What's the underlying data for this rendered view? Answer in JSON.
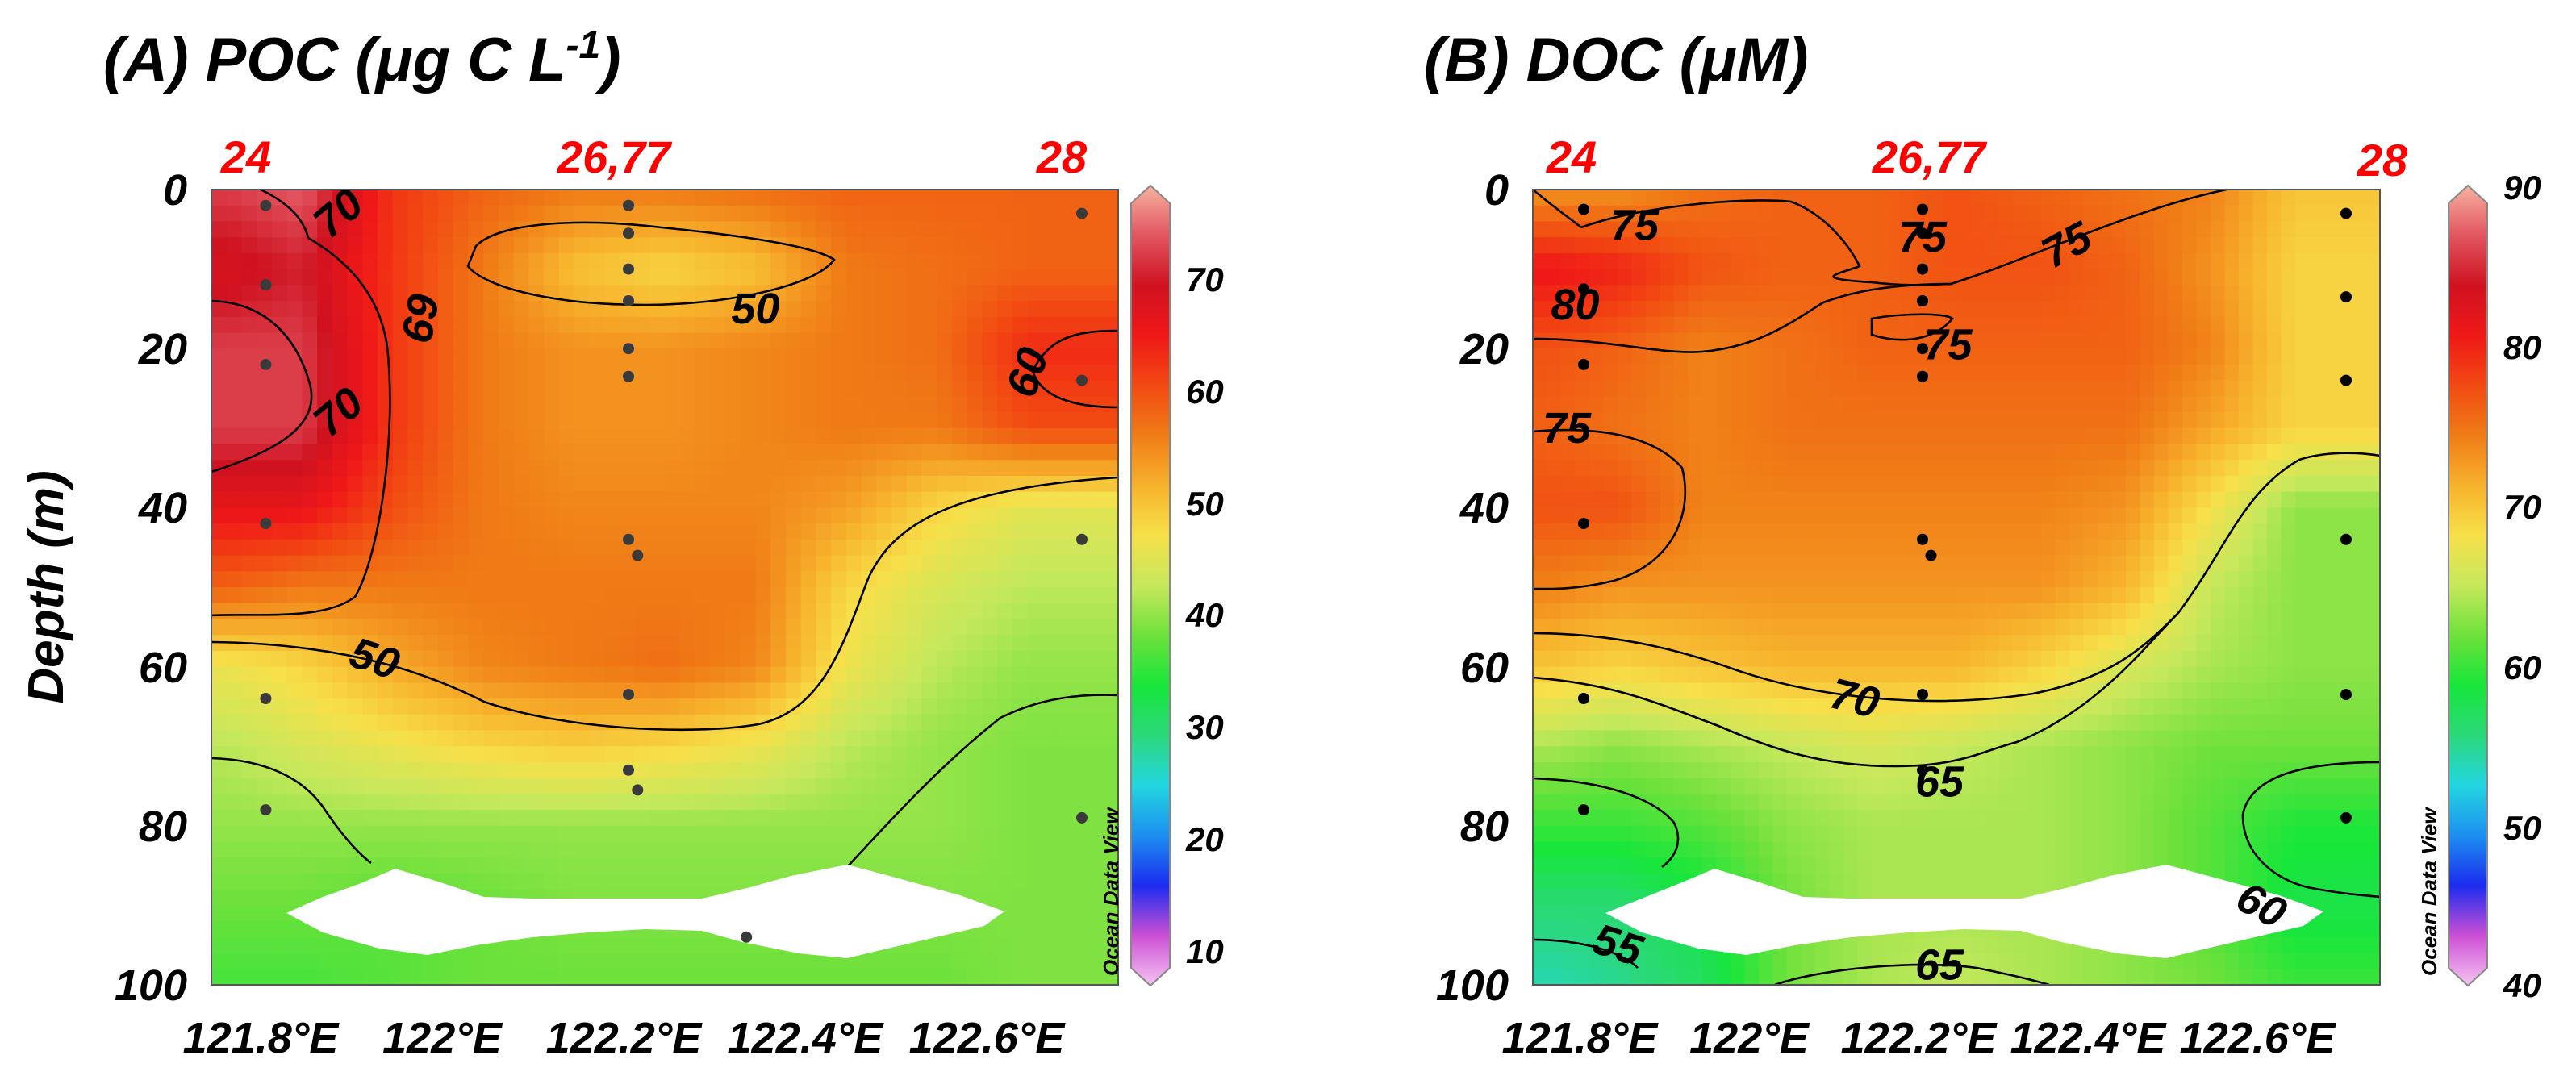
{
  "colors": {
    "station_label": "#ff0000",
    "contour": "#000000",
    "sample_point_a": "#3a3a3a",
    "sample_point_b": "#000000",
    "blank": "#ffffff"
  },
  "colorbar_gradient": [
    "#f6c4f2",
    "#cc4fd4",
    "#1c2cf0",
    "#1d8ff0",
    "#22d6e0",
    "#2bd87b",
    "#17e63a",
    "#6de13b",
    "#c6e85c",
    "#f7e04a",
    "#f7b22c",
    "#f07c16",
    "#f24a12",
    "#f01818",
    "#cf1220",
    "#e25560",
    "#f6b2a0"
  ],
  "y_axis_label": "Depth (m)",
  "chart_data": [
    {
      "type": "heatmap",
      "name": "poc",
      "title": "(A) POC (μg C L",
      "title_superscript": "-1",
      "title_suffix": ")",
      "xlabel": "",
      "ylabel": "Depth (m)",
      "x_ticks": [
        121.8,
        122.0,
        122.2,
        122.4,
        122.6
      ],
      "x_tick_labels": [
        "121.8°E",
        "122°E",
        "122.2°E",
        "122.4°E",
        "122.6°E"
      ],
      "y_ticks": [
        0,
        20,
        40,
        60,
        80,
        100
      ],
      "y_tick_labels": [
        "0",
        "20",
        "40",
        "60",
        "80",
        "100"
      ],
      "xlim": [
        121.7,
        122.7
      ],
      "ylim": [
        0,
        100
      ],
      "y_inverted": true,
      "stations": [
        {
          "label": "24",
          "lon": 121.76
        },
        {
          "label": "26,77",
          "lon": 122.16
        },
        {
          "label": "28",
          "lon": 122.66
        }
      ],
      "colorbar": {
        "min": 7,
        "max": 78,
        "ticks": [
          10,
          20,
          30,
          40,
          50,
          60,
          70
        ],
        "tick_labels": [
          "10",
          "20",
          "30",
          "40",
          "50",
          "60",
          "70"
        ],
        "credit": "Ocean Data View"
      },
      "contour_labels": [
        {
          "text": "70",
          "lon": 121.84,
          "depth": 3,
          "angle": -40
        },
        {
          "text": "69",
          "lon": 121.93,
          "depth": 16,
          "angle": 100
        },
        {
          "text": "70",
          "lon": 121.84,
          "depth": 28,
          "angle": -40
        },
        {
          "text": "50",
          "lon": 122.3,
          "depth": 15,
          "angle": 0
        },
        {
          "text": "60",
          "lon": 122.6,
          "depth": 23,
          "angle": -72
        },
        {
          "text": "50",
          "lon": 121.88,
          "depth": 59,
          "angle": 18
        }
      ],
      "sample_points": [
        [
          121.76,
          2
        ],
        [
          121.76,
          12
        ],
        [
          121.76,
          22
        ],
        [
          121.76,
          42
        ],
        [
          121.76,
          64
        ],
        [
          121.76,
          78
        ],
        [
          122.16,
          2
        ],
        [
          122.16,
          5.5
        ],
        [
          122.16,
          10
        ],
        [
          122.16,
          14
        ],
        [
          122.16,
          20
        ],
        [
          122.16,
          23.5
        ],
        [
          122.16,
          44
        ],
        [
          122.17,
          46
        ],
        [
          122.16,
          63.5
        ],
        [
          122.16,
          73
        ],
        [
          122.17,
          75.5
        ],
        [
          122.29,
          94
        ],
        [
          122.66,
          3
        ],
        [
          122.66,
          24
        ],
        [
          122.66,
          44
        ],
        [
          122.66,
          79
        ]
      ],
      "field": {
        "lons": [
          121.72,
          121.8,
          121.9,
          122.0,
          122.1,
          122.2,
          122.3,
          122.4,
          122.5,
          122.6,
          122.68
        ],
        "depths": [
          0,
          10,
          20,
          30,
          40,
          50,
          60,
          70,
          80,
          90,
          100
        ],
        "values": [
          [
            72,
            74,
            62,
            58,
            56,
            56,
            57,
            58,
            58,
            58,
            58
          ],
          [
            68,
            70,
            62,
            56,
            50,
            48,
            50,
            56,
            57,
            58,
            58
          ],
          [
            72,
            72,
            62,
            56,
            54,
            54,
            55,
            56,
            57,
            63,
            63
          ],
          [
            72,
            72,
            62,
            56,
            54,
            54,
            55,
            56,
            56,
            60,
            60
          ],
          [
            66,
            66,
            60,
            56,
            55,
            55,
            55,
            53,
            48,
            45,
            45
          ],
          [
            58,
            56,
            56,
            56,
            56,
            56,
            56,
            48,
            44,
            42,
            42
          ],
          [
            46,
            48,
            52,
            55,
            56,
            57,
            55,
            46,
            42,
            40,
            40
          ],
          [
            42,
            44,
            46,
            48,
            49,
            48,
            46,
            42,
            40,
            39,
            39
          ],
          [
            40,
            40,
            40,
            40,
            40,
            40,
            40,
            40,
            40,
            39,
            39
          ],
          [
            38,
            38,
            37,
            38,
            39,
            39,
            39,
            39,
            39,
            39,
            39
          ],
          [
            36,
            36,
            37,
            38,
            38,
            38,
            38,
            38,
            38,
            39,
            39
          ]
        ]
      }
    },
    {
      "type": "heatmap",
      "name": "doc",
      "title": "(B) DOC (μM)",
      "xlabel": "",
      "ylabel": "",
      "x_ticks": [
        121.8,
        122.0,
        122.2,
        122.4,
        122.6
      ],
      "x_tick_labels": [
        "121.8°E",
        "122°E",
        "122.2°E",
        "122.4°E",
        "122.6°E"
      ],
      "y_ticks": [
        0,
        20,
        40,
        60,
        80,
        100
      ],
      "y_tick_labels": [
        "0",
        "20",
        "40",
        "60",
        "80",
        "100"
      ],
      "xlim": [
        121.7,
        122.7
      ],
      "ylim": [
        0,
        100
      ],
      "y_inverted": true,
      "stations": [
        {
          "label": "24",
          "lon": 121.76
        },
        {
          "label": "26,77",
          "lon": 122.16
        },
        {
          "label": "28",
          "lon": 122.66
        }
      ],
      "colorbar": {
        "min": 40,
        "max": 90,
        "ticks": [
          40,
          50,
          60,
          70,
          80,
          90
        ],
        "tick_labels": [
          "40",
          "50",
          "60",
          "70",
          "80",
          "90"
        ],
        "credit": "Ocean Data View"
      },
      "contour_labels": [
        {
          "text": "75",
          "lon": 121.82,
          "depth": 4.5,
          "angle": 0
        },
        {
          "text": "80",
          "lon": 121.75,
          "depth": 14.5,
          "angle": 0
        },
        {
          "text": "75",
          "lon": 121.74,
          "depth": 30,
          "angle": 0
        },
        {
          "text": "75",
          "lon": 122.16,
          "depth": 6,
          "angle": 0
        },
        {
          "text": "75",
          "lon": 122.19,
          "depth": 19.5,
          "angle": 0
        },
        {
          "text": "75",
          "lon": 122.33,
          "depth": 7,
          "angle": -28
        },
        {
          "text": "70",
          "lon": 122.08,
          "depth": 64,
          "angle": 14
        },
        {
          "text": "65",
          "lon": 122.18,
          "depth": 74.5,
          "angle": 0
        },
        {
          "text": "60",
          "lon": 122.56,
          "depth": 90,
          "angle": 28
        },
        {
          "text": "55",
          "lon": 121.8,
          "depth": 95,
          "angle": 18
        },
        {
          "text": "65",
          "lon": 122.18,
          "depth": 97.5,
          "angle": 0
        }
      ],
      "sample_points": [
        [
          121.76,
          2.5
        ],
        [
          121.76,
          12.5
        ],
        [
          121.76,
          22
        ],
        [
          121.76,
          42
        ],
        [
          121.76,
          64
        ],
        [
          121.76,
          78
        ],
        [
          122.16,
          2.5
        ],
        [
          122.16,
          5.5
        ],
        [
          122.16,
          10
        ],
        [
          122.16,
          14
        ],
        [
          122.16,
          20
        ],
        [
          122.16,
          23.5
        ],
        [
          122.16,
          44
        ],
        [
          122.17,
          46
        ],
        [
          122.16,
          63.5
        ],
        [
          122.16,
          73
        ],
        [
          122.66,
          3
        ],
        [
          122.66,
          13.5
        ],
        [
          122.66,
          24
        ],
        [
          122.66,
          44
        ],
        [
          122.66,
          63.5
        ],
        [
          122.66,
          79
        ]
      ],
      "field": {
        "lons": [
          121.72,
          121.8,
          121.9,
          122.0,
          122.1,
          122.2,
          122.3,
          122.4,
          122.5,
          122.6,
          122.68
        ],
        "depths": [
          0,
          10,
          20,
          30,
          40,
          50,
          60,
          70,
          80,
          90,
          100
        ],
        "values": [
          [
            73,
            73,
            75,
            76,
            76,
            77,
            76,
            75,
            74,
            70,
            70
          ],
          [
            81,
            80,
            77,
            76,
            76,
            77,
            77,
            76,
            73,
            69,
            69
          ],
          [
            77,
            76,
            74,
            75,
            76,
            76,
            76,
            76,
            74,
            69,
            69
          ],
          [
            76,
            75,
            74,
            75,
            75,
            75,
            75,
            75,
            72,
            69,
            69
          ],
          [
            77,
            77,
            74,
            74,
            74,
            74,
            74,
            73,
            68,
            63,
            63
          ],
          [
            74,
            73,
            73,
            73,
            73,
            73,
            73,
            71,
            65,
            63,
            63
          ],
          [
            70,
            69,
            70,
            71,
            71,
            71,
            69,
            66,
            64,
            63,
            63
          ],
          [
            64,
            63,
            64,
            65,
            66,
            65,
            64,
            63,
            62,
            62,
            62
          ],
          [
            60,
            60,
            61,
            63,
            64,
            64,
            64,
            63,
            61,
            59,
            59
          ],
          [
            56,
            56,
            58,
            62,
            64,
            64,
            64,
            63,
            61,
            58,
            58
          ],
          [
            54,
            55,
            57,
            62,
            64,
            65,
            64,
            63,
            62,
            60,
            60
          ]
        ]
      }
    }
  ]
}
